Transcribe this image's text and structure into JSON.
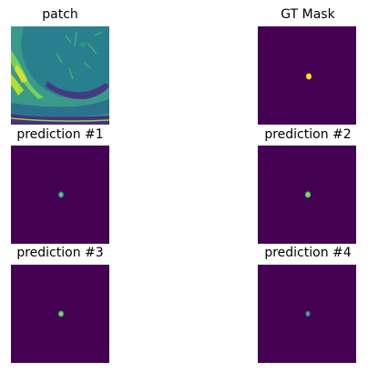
{
  "figure": {
    "panels": [
      {
        "title": "patch"
      },
      {
        "title": "GT Mask"
      },
      {
        "title": "prediction #1"
      },
      {
        "title": "prediction #2"
      },
      {
        "title": "prediction #3"
      },
      {
        "title": "prediction #4"
      }
    ]
  },
  "colors": {
    "viridis_dark": "#440154",
    "viridis_teal": "#21918c",
    "viridis_green": "#5ec962",
    "viridis_yellow": "#fde725"
  }
}
